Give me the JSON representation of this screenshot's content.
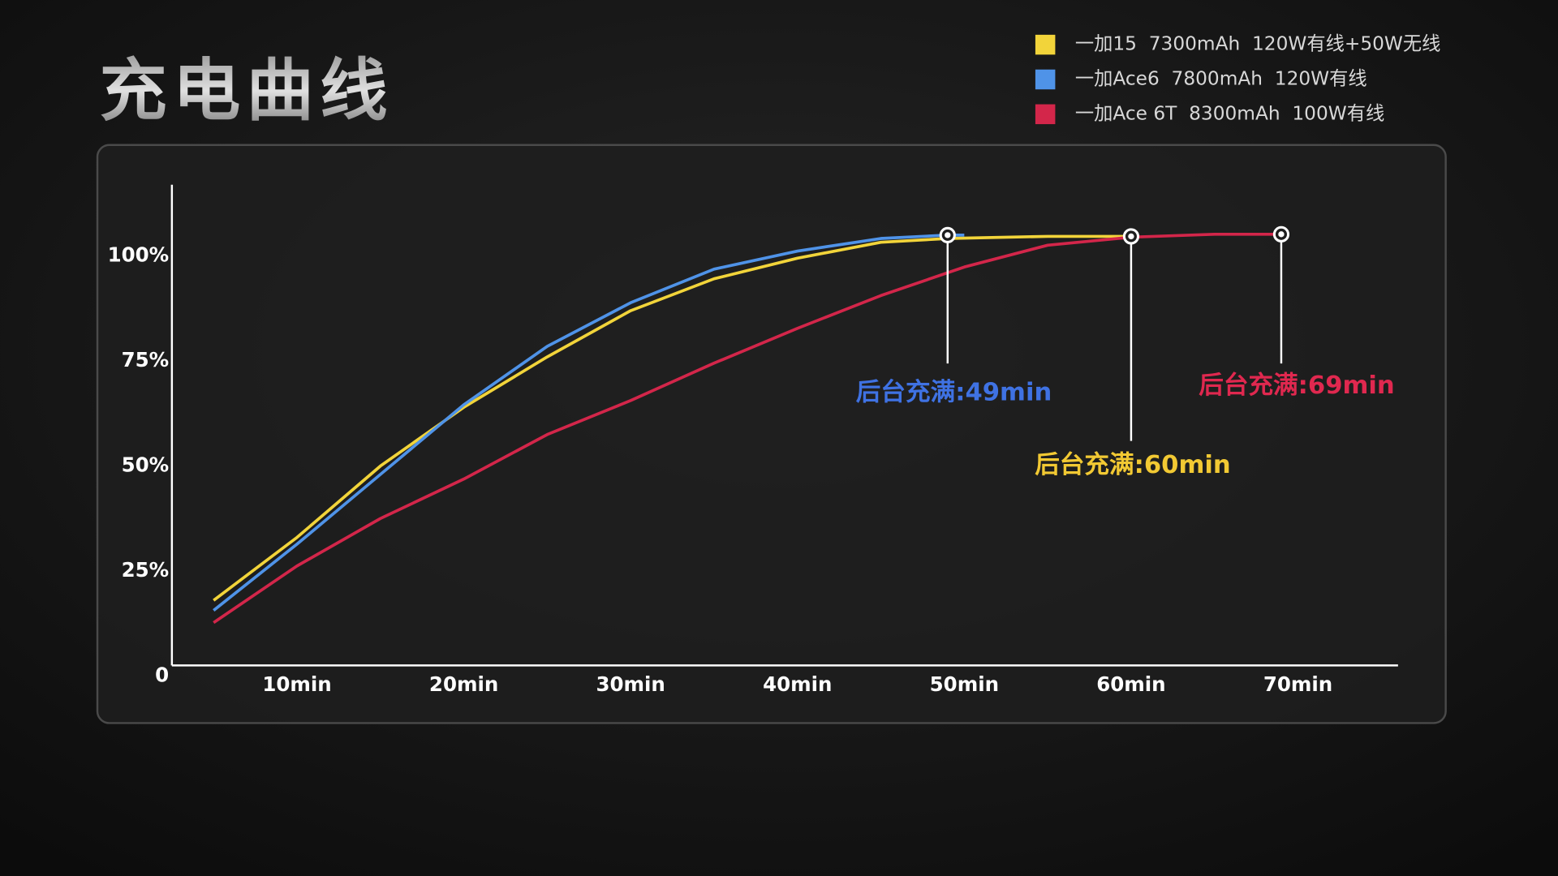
{
  "chart_data": {
    "type": "line",
    "title": "充电曲线",
    "xlim": [
      2.5,
      76
    ],
    "xticks": [
      {
        "value": 10,
        "label": "10min"
      },
      {
        "value": 20,
        "label": "20min"
      },
      {
        "value": 30,
        "label": "30min"
      },
      {
        "value": 40,
        "label": "40min"
      },
      {
        "value": 50,
        "label": "50min"
      },
      {
        "value": 60,
        "label": "60min"
      },
      {
        "value": 70,
        "label": "70min"
      }
    ],
    "ylim": [
      2.5,
      117
    ],
    "yticks": [
      0,
      {
        "value": 25,
        "label": "25%"
      },
      {
        "value": 50,
        "label": "50%"
      },
      {
        "value": 75,
        "label": "75%"
      },
      {
        "value": 100,
        "label": "100%"
      }
    ],
    "legend": "top-right",
    "series": [
      {
        "name": "一加15  7300mAh  120W有线+50W无线",
        "color": "#f2d43a",
        "x": [
          5,
          10,
          15,
          20,
          25,
          30,
          35,
          40,
          45,
          49,
          55,
          60
        ],
        "values": [
          18,
          33,
          50,
          64,
          76,
          87,
          94.6,
          99.5,
          103.3,
          104.2,
          104.7,
          104.7
        ]
      },
      {
        "name": "一加Ace6  7800mAh  120W有线",
        "color": "#4f93e8",
        "x": [
          5,
          10,
          15,
          20,
          25,
          30,
          35,
          40,
          45,
          49,
          50
        ],
        "values": [
          15.6,
          31.4,
          48,
          64.6,
          78.5,
          88.9,
          96.9,
          101.2,
          104.2,
          105,
          105
        ]
      },
      {
        "name": "一加Ace 6T  8300mAh  100W有线",
        "color": "#d3264a",
        "x": [
          5,
          10,
          15,
          20,
          25,
          30,
          35,
          40,
          45,
          50,
          55,
          60,
          65,
          69
        ],
        "values": [
          12.7,
          26.2,
          37.5,
          46.9,
          57.5,
          65.6,
          74.5,
          82.8,
          90.6,
          97.4,
          102.6,
          104.5,
          105.2,
          105.2
        ]
      }
    ],
    "annotations": [
      {
        "text": "后台充满:49min",
        "color": "#3f72e3",
        "series": 1,
        "point": 9
      },
      {
        "text": "后台充满:60min",
        "color": "#f2c933",
        "series": 0,
        "point": 11
      },
      {
        "text": "后台充满:69min",
        "color": "#e0284f",
        "series": 2,
        "point": 13
      }
    ]
  }
}
